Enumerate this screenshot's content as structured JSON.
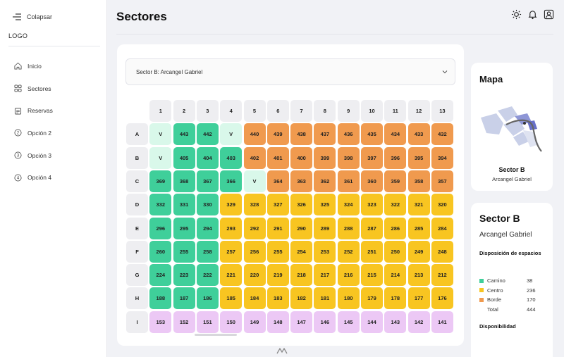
{
  "sidebar": {
    "collapse_label": "Colapsar",
    "logo": "LOGO",
    "items": [
      {
        "label": "Inicio",
        "icon": "home-icon"
      },
      {
        "label": "Sectores",
        "icon": "grid-icon"
      },
      {
        "label": "Reservas",
        "icon": "calendar-icon"
      },
      {
        "label": "Opción 2",
        "icon": "number-2-icon"
      },
      {
        "label": "Opción 3",
        "icon": "number-3-icon"
      },
      {
        "label": "Opción 4",
        "icon": "number-4-icon"
      }
    ]
  },
  "header": {
    "title": "Sectores",
    "icons": [
      "sun-icon",
      "bell-icon",
      "user-icon"
    ]
  },
  "sector_select": {
    "value": "Sector B: Arcangel Gabriel"
  },
  "seat_grid": {
    "columns": [
      "1",
      "2",
      "3",
      "4",
      "5",
      "6",
      "7",
      "8",
      "9",
      "10",
      "11",
      "12",
      "13"
    ],
    "rows": [
      {
        "label": "A",
        "cells": [
          [
            "V",
            "free"
          ],
          [
            "443",
            "road"
          ],
          [
            "442",
            "road"
          ],
          [
            "V",
            "free"
          ],
          [
            "440",
            "edge"
          ],
          [
            "439",
            "edge"
          ],
          [
            "438",
            "edge"
          ],
          [
            "437",
            "edge"
          ],
          [
            "436",
            "edge"
          ],
          [
            "435",
            "edge"
          ],
          [
            "434",
            "edge"
          ],
          [
            "433",
            "edge"
          ],
          [
            "432",
            "edge"
          ]
        ]
      },
      {
        "label": "B",
        "cells": [
          [
            "V",
            "free"
          ],
          [
            "405",
            "road"
          ],
          [
            "404",
            "road"
          ],
          [
            "403",
            "road"
          ],
          [
            "402",
            "edge"
          ],
          [
            "401",
            "edge"
          ],
          [
            "400",
            "edge"
          ],
          [
            "399",
            "edge"
          ],
          [
            "398",
            "edge"
          ],
          [
            "397",
            "edge"
          ],
          [
            "396",
            "edge"
          ],
          [
            "395",
            "edge"
          ],
          [
            "394",
            "edge"
          ]
        ]
      },
      {
        "label": "C",
        "cells": [
          [
            "369",
            "road"
          ],
          [
            "368",
            "road"
          ],
          [
            "367",
            "road"
          ],
          [
            "366",
            "road"
          ],
          [
            "V",
            "free"
          ],
          [
            "364",
            "edge"
          ],
          [
            "363",
            "edge"
          ],
          [
            "362",
            "edge"
          ],
          [
            "361",
            "edge"
          ],
          [
            "360",
            "edge"
          ],
          [
            "359",
            "edge"
          ],
          [
            "358",
            "edge"
          ],
          [
            "357",
            "edge"
          ]
        ]
      },
      {
        "label": "D",
        "cells": [
          [
            "332",
            "road"
          ],
          [
            "331",
            "road"
          ],
          [
            "330",
            "road"
          ],
          [
            "329",
            "center"
          ],
          [
            "328",
            "center"
          ],
          [
            "327",
            "center"
          ],
          [
            "326",
            "center"
          ],
          [
            "325",
            "center"
          ],
          [
            "324",
            "center"
          ],
          [
            "323",
            "center"
          ],
          [
            "322",
            "center"
          ],
          [
            "321",
            "center"
          ],
          [
            "320",
            "center"
          ]
        ]
      },
      {
        "label": "E",
        "cells": [
          [
            "296",
            "road"
          ],
          [
            "295",
            "road"
          ],
          [
            "294",
            "road"
          ],
          [
            "293",
            "center"
          ],
          [
            "292",
            "center"
          ],
          [
            "291",
            "center"
          ],
          [
            "290",
            "center"
          ],
          [
            "289",
            "center"
          ],
          [
            "288",
            "center"
          ],
          [
            "287",
            "center"
          ],
          [
            "286",
            "center"
          ],
          [
            "285",
            "center"
          ],
          [
            "284",
            "center"
          ]
        ]
      },
      {
        "label": "F",
        "cells": [
          [
            "260",
            "road"
          ],
          [
            "255",
            "road"
          ],
          [
            "258",
            "road"
          ],
          [
            "257",
            "center"
          ],
          [
            "256",
            "center"
          ],
          [
            "255",
            "center"
          ],
          [
            "254",
            "center"
          ],
          [
            "253",
            "center"
          ],
          [
            "252",
            "center"
          ],
          [
            "251",
            "center"
          ],
          [
            "250",
            "center"
          ],
          [
            "249",
            "center"
          ],
          [
            "248",
            "center"
          ]
        ]
      },
      {
        "label": "G",
        "cells": [
          [
            "224",
            "road"
          ],
          [
            "223",
            "road"
          ],
          [
            "222",
            "road"
          ],
          [
            "221",
            "center"
          ],
          [
            "220",
            "center"
          ],
          [
            "219",
            "center"
          ],
          [
            "218",
            "center"
          ],
          [
            "217",
            "center"
          ],
          [
            "216",
            "center"
          ],
          [
            "215",
            "center"
          ],
          [
            "214",
            "center"
          ],
          [
            "213",
            "center"
          ],
          [
            "212",
            "center"
          ]
        ]
      },
      {
        "label": "H",
        "cells": [
          [
            "188",
            "road"
          ],
          [
            "187",
            "road"
          ],
          [
            "186",
            "road"
          ],
          [
            "185",
            "center"
          ],
          [
            "184",
            "center"
          ],
          [
            "183",
            "center"
          ],
          [
            "182",
            "center"
          ],
          [
            "181",
            "center"
          ],
          [
            "180",
            "center"
          ],
          [
            "179",
            "center"
          ],
          [
            "178",
            "center"
          ],
          [
            "177",
            "center"
          ],
          [
            "176",
            "center"
          ]
        ]
      },
      {
        "label": "I",
        "cells": [
          [
            "153",
            "pink"
          ],
          [
            "152",
            "pink"
          ],
          [
            "151",
            "pink"
          ],
          [
            "150",
            "pink"
          ],
          [
            "149",
            "pink"
          ],
          [
            "148",
            "pink"
          ],
          [
            "147",
            "pink"
          ],
          [
            "146",
            "pink"
          ],
          [
            "145",
            "pink"
          ],
          [
            "144",
            "pink"
          ],
          [
            "143",
            "pink"
          ],
          [
            "142",
            "pink"
          ],
          [
            "141",
            "pink"
          ]
        ]
      }
    ]
  },
  "map_card": {
    "title": "Mapa",
    "sector": "Sector B",
    "subtitle": "Arcangel Gabriel"
  },
  "info_card": {
    "title": "Sector B",
    "subtitle": "Arcangel Gabriel",
    "layout_heading": "Disposición de espacios",
    "legend": [
      {
        "name": "Camino",
        "value": "38",
        "color": "#3fcf9a"
      },
      {
        "name": "Centro",
        "value": "236",
        "color": "#f8c521"
      },
      {
        "name": "Borde",
        "value": "170",
        "color": "#f09a4e"
      },
      {
        "name": "Total",
        "value": "444",
        "color": ""
      }
    ],
    "availability_heading": "Disponibilidad"
  }
}
